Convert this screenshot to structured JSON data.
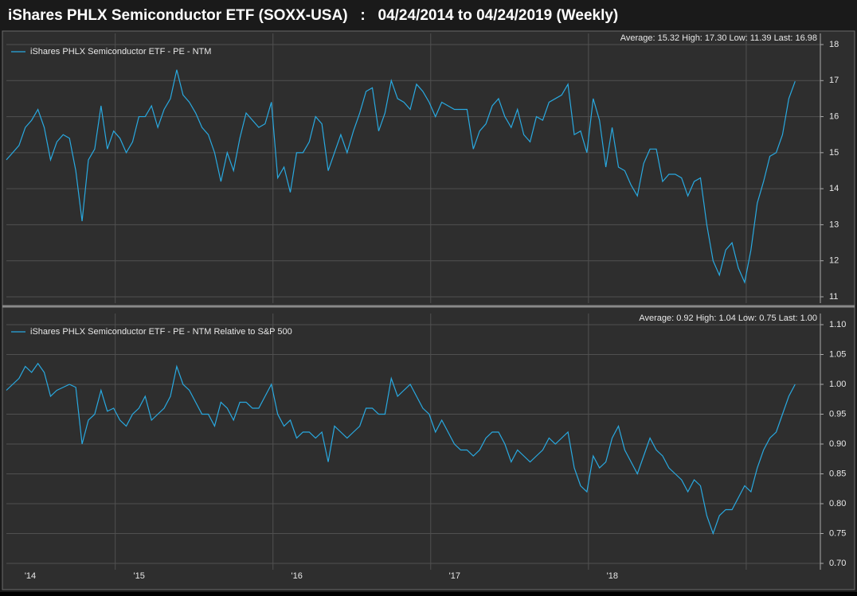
{
  "chart_data": [
    {
      "type": "line",
      "title": "iShares PHLX Semiconductor ETF (SOXX-USA)   :   04/24/2014 to 04/24/2019 (Weekly)",
      "annotation": "Average: 15.32 High: 17.30 Low: 11.39 Last: 16.98",
      "x": [
        2014.31,
        2014.35,
        2014.39,
        2014.43,
        2014.47,
        2014.51,
        2014.55,
        2014.59,
        2014.63,
        2014.67,
        2014.71,
        2014.75,
        2014.79,
        2014.83,
        2014.87,
        2014.91,
        2014.95,
        2014.99,
        2015.03,
        2015.07,
        2015.11,
        2015.15,
        2015.19,
        2015.23,
        2015.27,
        2015.31,
        2015.35,
        2015.39,
        2015.43,
        2015.47,
        2015.51,
        2015.55,
        2015.59,
        2015.63,
        2015.67,
        2015.71,
        2015.75,
        2015.79,
        2015.83,
        2015.87,
        2015.91,
        2015.95,
        2015.99,
        2016.03,
        2016.07,
        2016.11,
        2016.15,
        2016.19,
        2016.23,
        2016.27,
        2016.31,
        2016.35,
        2016.39,
        2016.43,
        2016.47,
        2016.51,
        2016.55,
        2016.59,
        2016.63,
        2016.67,
        2016.71,
        2016.75,
        2016.79,
        2016.83,
        2016.87,
        2016.91,
        2016.95,
        2016.99,
        2017.03,
        2017.07,
        2017.11,
        2017.15,
        2017.19,
        2017.23,
        2017.27,
        2017.31,
        2017.35,
        2017.39,
        2017.43,
        2017.47,
        2017.51,
        2017.55,
        2017.59,
        2017.63,
        2017.67,
        2017.71,
        2017.75,
        2017.79,
        2017.83,
        2017.87,
        2017.91,
        2017.95,
        2017.99,
        2018.03,
        2018.07,
        2018.11,
        2018.15,
        2018.19,
        2018.23,
        2018.27,
        2018.31,
        2018.35,
        2018.39,
        2018.43,
        2018.47,
        2018.51,
        2018.55,
        2018.59,
        2018.63,
        2018.67,
        2018.71,
        2018.75,
        2018.79,
        2018.83,
        2018.87,
        2018.91,
        2018.95,
        2018.99,
        2019.03,
        2019.07,
        2019.11,
        2019.15,
        2019.19,
        2019.23,
        2019.27,
        2019.31
      ],
      "series": [
        {
          "name": "iShares PHLX Semiconductor ETF - PE - NTM",
          "color": "#29a9e0",
          "values": [
            14.8,
            15.0,
            15.2,
            15.7,
            15.9,
            16.2,
            15.7,
            14.8,
            15.3,
            15.5,
            15.4,
            14.5,
            13.1,
            14.8,
            15.1,
            16.3,
            15.1,
            15.6,
            15.4,
            15.0,
            15.3,
            16.0,
            16.0,
            16.3,
            15.7,
            16.2,
            16.5,
            17.3,
            16.6,
            16.4,
            16.1,
            15.7,
            15.5,
            15.0,
            14.2,
            15.0,
            14.5,
            15.4,
            16.1,
            15.9,
            15.7,
            15.8,
            16.4,
            14.3,
            14.6,
            13.9,
            15.0,
            15.0,
            15.3,
            16.0,
            15.8,
            14.5,
            15.0,
            15.5,
            15.0,
            15.6,
            16.1,
            16.7,
            16.8,
            15.6,
            16.1,
            17.0,
            16.5,
            16.4,
            16.2,
            16.9,
            16.7,
            16.4,
            16.0,
            16.4,
            16.3,
            16.2,
            16.2,
            16.2,
            15.1,
            15.6,
            15.8,
            16.3,
            16.5,
            16.0,
            15.7,
            16.2,
            15.5,
            15.3,
            16.0,
            15.9,
            16.4,
            16.5,
            16.6,
            16.9,
            15.5,
            15.6,
            15.0,
            16.5,
            15.9,
            14.6,
            15.7,
            14.6,
            14.5,
            14.1,
            13.8,
            14.7,
            15.1,
            15.1,
            14.2,
            14.4,
            14.4,
            14.3,
            13.8,
            14.2,
            14.3,
            13.0,
            12.0,
            11.6,
            12.3,
            12.5,
            11.8,
            11.4,
            12.3,
            13.6,
            14.2,
            14.9,
            15.0,
            15.5,
            16.5,
            16.98
          ]
        }
      ],
      "xlim": [
        2014.31,
        2019.47
      ],
      "xgrid": [
        2015,
        2016,
        2017,
        2018,
        2019
      ],
      "ylim": [
        11,
        18
      ],
      "yticks": [
        11,
        12,
        13,
        14,
        15,
        16,
        17,
        18
      ],
      "grid": true,
      "legend": "top-left"
    },
    {
      "type": "line",
      "annotation": "Average: 0.92 High: 1.04 Low: 0.75 Last: 1.00",
      "x": [
        2014.31,
        2014.35,
        2014.39,
        2014.43,
        2014.47,
        2014.51,
        2014.55,
        2014.59,
        2014.63,
        2014.67,
        2014.71,
        2014.75,
        2014.79,
        2014.83,
        2014.87,
        2014.91,
        2014.95,
        2014.99,
        2015.03,
        2015.07,
        2015.11,
        2015.15,
        2015.19,
        2015.23,
        2015.27,
        2015.31,
        2015.35,
        2015.39,
        2015.43,
        2015.47,
        2015.51,
        2015.55,
        2015.59,
        2015.63,
        2015.67,
        2015.71,
        2015.75,
        2015.79,
        2015.83,
        2015.87,
        2015.91,
        2015.95,
        2015.99,
        2016.03,
        2016.07,
        2016.11,
        2016.15,
        2016.19,
        2016.23,
        2016.27,
        2016.31,
        2016.35,
        2016.39,
        2016.43,
        2016.47,
        2016.51,
        2016.55,
        2016.59,
        2016.63,
        2016.67,
        2016.71,
        2016.75,
        2016.79,
        2016.83,
        2016.87,
        2016.91,
        2016.95,
        2016.99,
        2017.03,
        2017.07,
        2017.11,
        2017.15,
        2017.19,
        2017.23,
        2017.27,
        2017.31,
        2017.35,
        2017.39,
        2017.43,
        2017.47,
        2017.51,
        2017.55,
        2017.59,
        2017.63,
        2017.67,
        2017.71,
        2017.75,
        2017.79,
        2017.83,
        2017.87,
        2017.91,
        2017.95,
        2017.99,
        2018.03,
        2018.07,
        2018.11,
        2018.15,
        2018.19,
        2018.23,
        2018.27,
        2018.31,
        2018.35,
        2018.39,
        2018.43,
        2018.47,
        2018.51,
        2018.55,
        2018.59,
        2018.63,
        2018.67,
        2018.71,
        2018.75,
        2018.79,
        2018.83,
        2018.87,
        2018.91,
        2018.95,
        2018.99,
        2019.03,
        2019.07,
        2019.11,
        2019.15,
        2019.19,
        2019.23,
        2019.27,
        2019.31
      ],
      "series": [
        {
          "name": "iShares PHLX Semiconductor ETF - PE - NTM Relative to S&P 500",
          "color": "#29a9e0",
          "values": [
            0.99,
            1.0,
            1.01,
            1.03,
            1.02,
            1.035,
            1.02,
            0.98,
            0.99,
            0.995,
            1.0,
            0.995,
            0.9,
            0.94,
            0.95,
            0.99,
            0.955,
            0.96,
            0.94,
            0.93,
            0.95,
            0.96,
            0.98,
            0.94,
            0.95,
            0.96,
            0.98,
            1.03,
            1.0,
            0.99,
            0.97,
            0.95,
            0.95,
            0.93,
            0.97,
            0.96,
            0.94,
            0.97,
            0.97,
            0.96,
            0.96,
            0.98,
            1.0,
            0.95,
            0.93,
            0.94,
            0.91,
            0.92,
            0.92,
            0.91,
            0.92,
            0.87,
            0.93,
            0.92,
            0.91,
            0.92,
            0.93,
            0.96,
            0.96,
            0.95,
            0.95,
            1.01,
            0.98,
            0.99,
            1.0,
            0.98,
            0.96,
            0.95,
            0.92,
            0.94,
            0.92,
            0.9,
            0.89,
            0.89,
            0.88,
            0.89,
            0.91,
            0.92,
            0.92,
            0.9,
            0.87,
            0.89,
            0.88,
            0.87,
            0.88,
            0.89,
            0.91,
            0.9,
            0.91,
            0.92,
            0.86,
            0.83,
            0.82,
            0.88,
            0.86,
            0.87,
            0.91,
            0.93,
            0.89,
            0.87,
            0.85,
            0.88,
            0.91,
            0.89,
            0.88,
            0.86,
            0.85,
            0.84,
            0.82,
            0.84,
            0.83,
            0.78,
            0.75,
            0.78,
            0.79,
            0.79,
            0.81,
            0.83,
            0.82,
            0.86,
            0.89,
            0.91,
            0.92,
            0.95,
            0.98,
            1.0
          ]
        }
      ],
      "xlim": [
        2014.31,
        2019.47
      ],
      "xticks": [
        {
          "value": 2014,
          "label": "'14"
        },
        {
          "value": 2015,
          "label": "'15"
        },
        {
          "value": 2016,
          "label": "'16"
        },
        {
          "value": 2017,
          "label": "'17"
        },
        {
          "value": 2018,
          "label": "'18"
        }
      ],
      "xgrid": [
        2015,
        2016,
        2017,
        2018,
        2019
      ],
      "ylim": [
        0.7,
        1.1
      ],
      "yticks": [
        {
          "value": 0.7,
          "label": "0.70"
        },
        0.75,
        {
          "value": 0.8,
          "label": "0.80"
        },
        0.85,
        {
          "value": 0.9,
          "label": "0.90"
        },
        0.95,
        {
          "value": 1.0,
          "label": "1.00"
        },
        1.05,
        {
          "value": 1.1,
          "label": "1.10"
        }
      ],
      "grid": true,
      "legend": "top-left"
    }
  ]
}
